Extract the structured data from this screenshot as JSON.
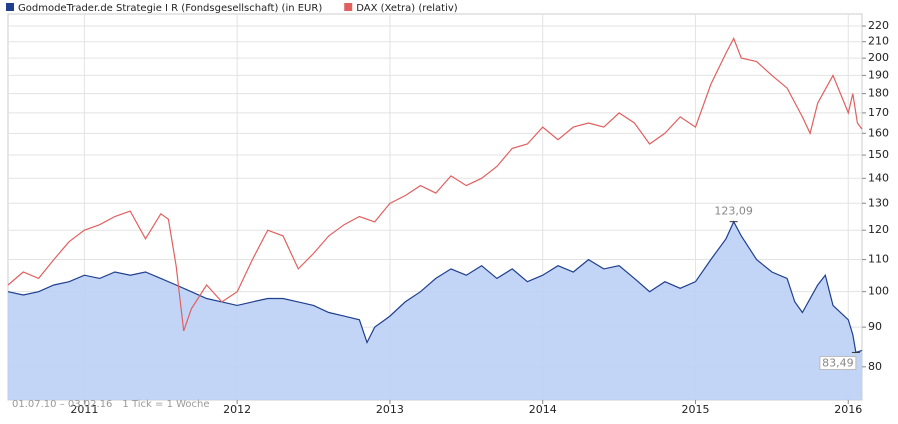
{
  "chart_data": {
    "type": "line",
    "log_scale": true,
    "grid": true,
    "xlim": [
      2010.5,
      2016.09
    ],
    "xticks": [
      2011,
      2012,
      2013,
      2014,
      2015,
      2016
    ],
    "ylim": [
      72.5,
      228
    ],
    "yticks": [
      80,
      90,
      100,
      110,
      120,
      130,
      140,
      150,
      160,
      170,
      180,
      190,
      200,
      210,
      220
    ],
    "date_range": "01.07.10 – 03.02.16",
    "tick_note": "1 Tick = 1 Woche",
    "series": [
      {
        "name": "GodmodeTrader.de Strategie I R (Fondsgesellschaft) (in EUR)",
        "color": "#1f3f8f",
        "fill": "#bcd0f5",
        "x": [
          2010.5,
          2010.6,
          2010.7,
          2010.8,
          2010.9,
          2011.0,
          2011.1,
          2011.2,
          2011.3,
          2011.4,
          2011.5,
          2011.6,
          2011.7,
          2011.8,
          2011.9,
          2012.0,
          2012.1,
          2012.2,
          2012.3,
          2012.4,
          2012.5,
          2012.6,
          2012.7,
          2012.8,
          2012.85,
          2012.9,
          2013.0,
          2013.1,
          2013.2,
          2013.3,
          2013.4,
          2013.5,
          2013.6,
          2013.7,
          2013.8,
          2013.9,
          2014.0,
          2014.1,
          2014.2,
          2014.3,
          2014.4,
          2014.5,
          2014.6,
          2014.7,
          2014.8,
          2014.9,
          2015.0,
          2015.1,
          2015.2,
          2015.25,
          2015.3,
          2015.4,
          2015.5,
          2015.6,
          2015.65,
          2015.7,
          2015.8,
          2015.85,
          2015.9,
          2016.0,
          2016.03,
          2016.05,
          2016.09
        ],
        "values": [
          100,
          99,
          100,
          102,
          103,
          105,
          104,
          106,
          105,
          106,
          104,
          102,
          100,
          98,
          97,
          96,
          97,
          98,
          98,
          97,
          96,
          94,
          93,
          92,
          86,
          90,
          93,
          97,
          100,
          104,
          107,
          105,
          108,
          104,
          107,
          103,
          105,
          108,
          106,
          110,
          107,
          108,
          104,
          100,
          103,
          101,
          103,
          110,
          117,
          123.09,
          118,
          110,
          106,
          104,
          97,
          94,
          102,
          105,
          96,
          92,
          88,
          83.49,
          84
        ]
      },
      {
        "name": "DAX (Xetra) (relativ)",
        "color": "#e06060",
        "x": [
          2010.5,
          2010.6,
          2010.7,
          2010.8,
          2010.9,
          2011.0,
          2011.1,
          2011.2,
          2011.3,
          2011.4,
          2011.5,
          2011.55,
          2011.6,
          2011.65,
          2011.7,
          2011.8,
          2011.9,
          2012.0,
          2012.1,
          2012.2,
          2012.3,
          2012.4,
          2012.5,
          2012.6,
          2012.7,
          2012.8,
          2012.9,
          2013.0,
          2013.1,
          2013.2,
          2013.3,
          2013.4,
          2013.5,
          2013.6,
          2013.7,
          2013.8,
          2013.9,
          2014.0,
          2014.1,
          2014.2,
          2014.3,
          2014.4,
          2014.5,
          2014.6,
          2014.7,
          2014.8,
          2014.9,
          2015.0,
          2015.1,
          2015.2,
          2015.25,
          2015.3,
          2015.4,
          2015.5,
          2015.6,
          2015.7,
          2015.75,
          2015.8,
          2015.9,
          2016.0,
          2016.03,
          2016.06,
          2016.09
        ],
        "values": [
          102,
          106,
          104,
          110,
          116,
          120,
          122,
          125,
          127,
          117,
          126,
          124,
          108,
          89,
          95,
          102,
          97,
          100,
          110,
          120,
          118,
          107,
          112,
          118,
          122,
          125,
          123,
          130,
          133,
          137,
          134,
          141,
          137,
          140,
          145,
          153,
          155,
          163,
          157,
          163,
          165,
          163,
          170,
          165,
          155,
          160,
          168,
          163,
          185,
          203,
          212,
          200,
          198,
          190,
          183,
          168,
          160,
          175,
          190,
          170,
          180,
          165,
          162
        ]
      }
    ],
    "annotations": [
      {
        "label": "123,09",
        "x": 2015.25,
        "y": 123.09
      },
      {
        "label": "83,49",
        "x": 2016.05,
        "y": 83.49
      }
    ]
  }
}
